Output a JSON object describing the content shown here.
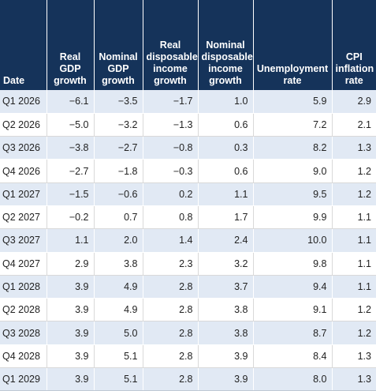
{
  "table": {
    "headers": [
      "Date",
      "Real GDP growth",
      "Nominal GDP growth",
      "Real disposable income growth",
      "Nominal disposable income growth",
      "Unemployment rate",
      "CPI inflation rate"
    ],
    "rows": [
      [
        "Q1 2026",
        "−6.1",
        "−3.5",
        "−1.7",
        "1.0",
        "5.9",
        "2.9"
      ],
      [
        "Q2 2026",
        "−5.0",
        "−3.2",
        "−1.3",
        "0.6",
        "7.2",
        "2.1"
      ],
      [
        "Q3 2026",
        "−3.8",
        "−2.7",
        "−0.8",
        "0.3",
        "8.2",
        "1.3"
      ],
      [
        "Q4 2026",
        "−2.7",
        "−1.8",
        "−0.3",
        "0.6",
        "9.0",
        "1.2"
      ],
      [
        "Q1 2027",
        "−1.5",
        "−0.6",
        "0.2",
        "1.1",
        "9.5",
        "1.2"
      ],
      [
        "Q2 2027",
        "−0.2",
        "0.7",
        "0.8",
        "1.7",
        "9.9",
        "1.1"
      ],
      [
        "Q3 2027",
        "1.1",
        "2.0",
        "1.4",
        "2.4",
        "10.0",
        "1.1"
      ],
      [
        "Q4 2027",
        "2.9",
        "3.8",
        "2.3",
        "3.2",
        "9.8",
        "1.1"
      ],
      [
        "Q1 2028",
        "3.9",
        "4.9",
        "2.8",
        "3.7",
        "9.4",
        "1.1"
      ],
      [
        "Q2 2028",
        "3.9",
        "4.9",
        "2.8",
        "3.8",
        "9.1",
        "1.2"
      ],
      [
        "Q3 2028",
        "3.9",
        "5.0",
        "2.8",
        "3.8",
        "8.7",
        "1.2"
      ],
      [
        "Q4 2028",
        "3.9",
        "5.1",
        "2.8",
        "3.9",
        "8.4",
        "1.3"
      ],
      [
        "Q1 2029",
        "3.9",
        "5.1",
        "2.8",
        "3.9",
        "8.0",
        "1.3"
      ]
    ]
  }
}
